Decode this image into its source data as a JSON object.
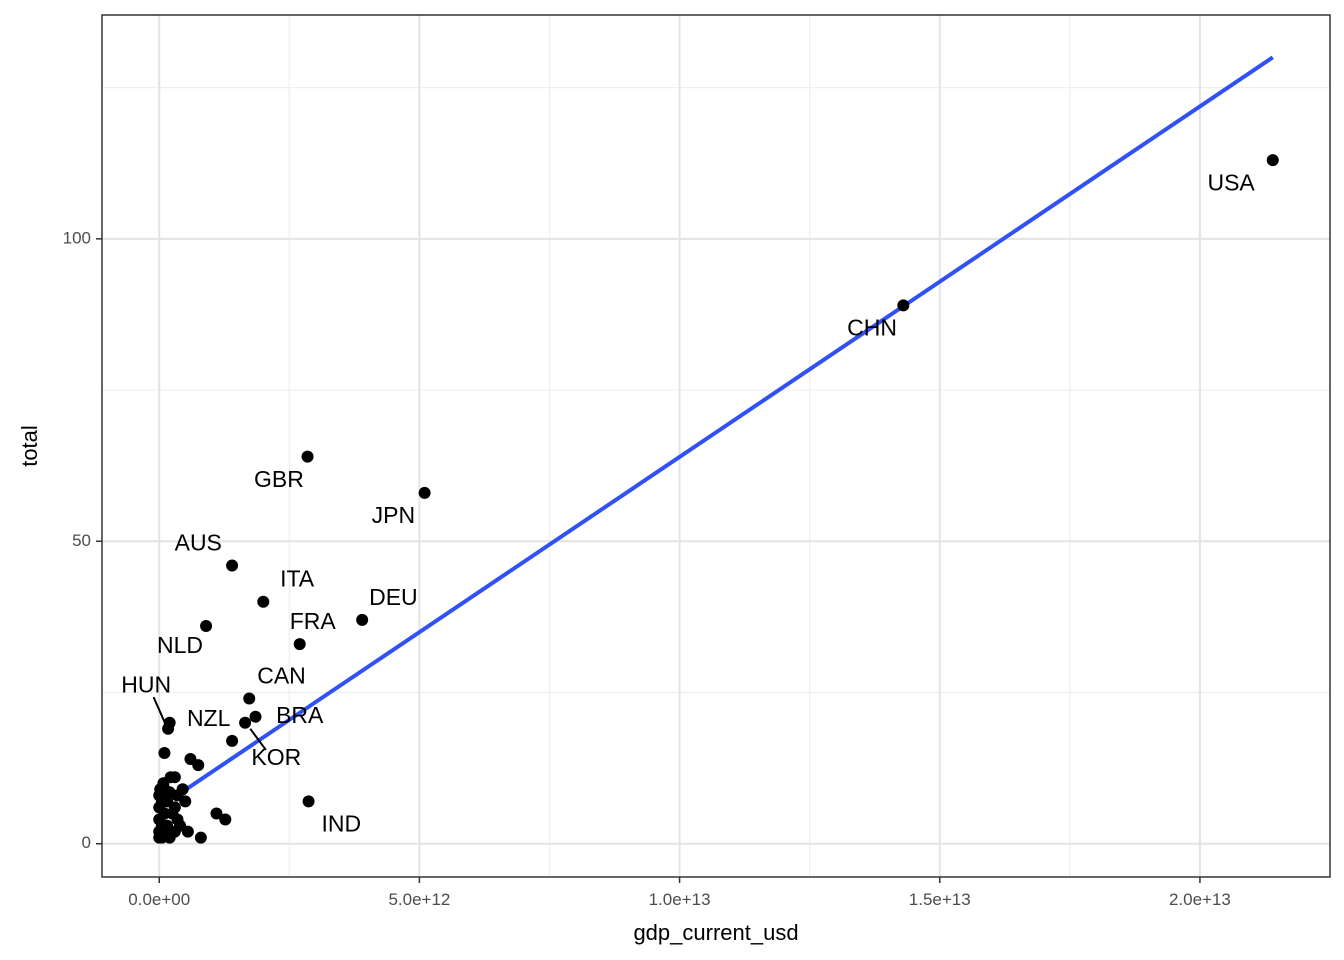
{
  "chart_data": {
    "type": "scatter",
    "title": "",
    "xlabel": "gdp_current_usd",
    "ylabel": "total",
    "xlim": [
      -1100000000000.0,
      22500000000000.0
    ],
    "ylim": [
      -5.5,
      137
    ],
    "x_ticks": [
      0,
      5000000000000.0,
      10000000000000.0,
      15000000000000.0,
      20000000000000.0
    ],
    "x_tick_labels": [
      "0.0e+00",
      "5.0e+12",
      "1.0e+13",
      "1.5e+13",
      "2.0e+13"
    ],
    "y_ticks": [
      0,
      50,
      100
    ],
    "y_tick_labels": [
      "0",
      "50",
      "100"
    ],
    "grid": true,
    "fit_line": {
      "x": [
        0,
        21400000000000.0
      ],
      "y": [
        6,
        130
      ]
    },
    "labeled_points": [
      {
        "name": "USA",
        "x": 21400000000000.0,
        "y": 113,
        "label_x": 20600000000000.0,
        "label_y": 109,
        "leader": false
      },
      {
        "name": "CHN",
        "x": 14300000000000.0,
        "y": 89,
        "label_x": 13700000000000.0,
        "label_y": 85,
        "leader": false
      },
      {
        "name": "GBR",
        "x": 2850000000000.0,
        "y": 64,
        "label_x": 2300000000000.0,
        "label_y": 60,
        "leader": false
      },
      {
        "name": "JPN",
        "x": 5100000000000.0,
        "y": 58,
        "label_x": 4500000000000.0,
        "label_y": 54,
        "leader": false
      },
      {
        "name": "AUS",
        "x": 1400000000000.0,
        "y": 46,
        "label_x": 750000000000.0,
        "label_y": 49.5,
        "leader": false
      },
      {
        "name": "ITA",
        "x": 2000000000000.0,
        "y": 40,
        "label_x": 2650000000000.0,
        "label_y": 43.5,
        "leader": false
      },
      {
        "name": "DEU",
        "x": 3900000000000.0,
        "y": 37,
        "label_x": 4500000000000.0,
        "label_y": 40.5,
        "leader": false
      },
      {
        "name": "FRA",
        "x": 2700000000000.0,
        "y": 33,
        "label_x": 2950000000000.0,
        "label_y": 36.5,
        "leader": false
      },
      {
        "name": "NLD",
        "x": 900000000000.0,
        "y": 36,
        "label_x": 400000000000.0,
        "label_y": 32.5,
        "leader": false
      },
      {
        "name": "CAN",
        "x": 1730000000000.0,
        "y": 24,
        "label_x": 2350000000000.0,
        "label_y": 27.5,
        "leader": false
      },
      {
        "name": "HUN",
        "x": 170000000000.0,
        "y": 19,
        "label_x": -250000000000.0,
        "label_y": 26,
        "leader": true
      },
      {
        "name": "NZL",
        "x": 200000000000.0,
        "y": 20,
        "label_x": 950000000000.0,
        "label_y": 20.5,
        "leader": false
      },
      {
        "name": "BRA",
        "x": 1850000000000.0,
        "y": 21,
        "label_x": 2700000000000.0,
        "label_y": 21,
        "leader": false
      },
      {
        "name": "KOR",
        "x": 1650000000000.0,
        "y": 20,
        "label_x": 2250000000000.0,
        "label_y": 14,
        "leader": true
      },
      {
        "name": "IND",
        "x": 2870000000000.0,
        "y": 7,
        "label_x": 3500000000000.0,
        "label_y": 3,
        "leader": false
      }
    ],
    "other_points": [
      {
        "x": 1400000000000.0,
        "y": 17
      },
      {
        "x": 100000000000.0,
        "y": 15
      },
      {
        "x": 600000000000.0,
        "y": 14
      },
      {
        "x": 750000000000.0,
        "y": 13
      },
      {
        "x": 220000000000.0,
        "y": 11
      },
      {
        "x": 300000000000.0,
        "y": 11
      },
      {
        "x": 80000000000.0,
        "y": 10
      },
      {
        "x": 20000000000.0,
        "y": 9
      },
      {
        "x": 100000000000.0,
        "y": 9
      },
      {
        "x": 450000000000.0,
        "y": 9
      },
      {
        "x": 200000000000.0,
        "y": 8.5
      },
      {
        "x": 350000000000.0,
        "y": 8
      },
      {
        "x": 0.0,
        "y": 8
      },
      {
        "x": 150000000000.0,
        "y": 7
      },
      {
        "x": 500000000000.0,
        "y": 7
      },
      {
        "x": 50000000000.0,
        "y": 7
      },
      {
        "x": 300000000000.0,
        "y": 6
      },
      {
        "x": 0.0,
        "y": 6
      },
      {
        "x": 100000000000.0,
        "y": 5
      },
      {
        "x": 250000000000.0,
        "y": 5
      },
      {
        "x": 1100000000000.0,
        "y": 5
      },
      {
        "x": 0.0,
        "y": 4
      },
      {
        "x": 350000000000.0,
        "y": 4
      },
      {
        "x": 1270000000000.0,
        "y": 4
      },
      {
        "x": 50000000000.0,
        "y": 3
      },
      {
        "x": 150000000000.0,
        "y": 3
      },
      {
        "x": 400000000000.0,
        "y": 3
      },
      {
        "x": 0.0,
        "y": 2
      },
      {
        "x": 100000000000.0,
        "y": 2
      },
      {
        "x": 300000000000.0,
        "y": 2
      },
      {
        "x": 550000000000.0,
        "y": 2
      },
      {
        "x": 0.0,
        "y": 1
      },
      {
        "x": 50000000000.0,
        "y": 1
      },
      {
        "x": 200000000000.0,
        "y": 1
      },
      {
        "x": 800000000000.0,
        "y": 1
      }
    ]
  }
}
